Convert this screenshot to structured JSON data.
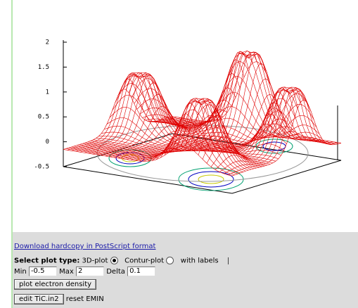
{
  "plot": {
    "z_ticks": [
      "2",
      "1.5",
      "1",
      "0.5",
      "0",
      "-0.5"
    ]
  },
  "download_link": "Download hardcopy in PostScript format",
  "form": {
    "select_label": "Select plot type:",
    "option_3d": "3D-plot",
    "option_contour": "Contur-plot",
    "with_labels": "with labels",
    "min_label": "Min",
    "min_value": "-0.5",
    "max_label": "Max",
    "max_value": "2",
    "delta_label": "Delta",
    "delta_value": "0.1",
    "plot_button": "plot electron density",
    "edit_button": "edit TiC.in2",
    "reset_label": "reset EMIN"
  }
}
